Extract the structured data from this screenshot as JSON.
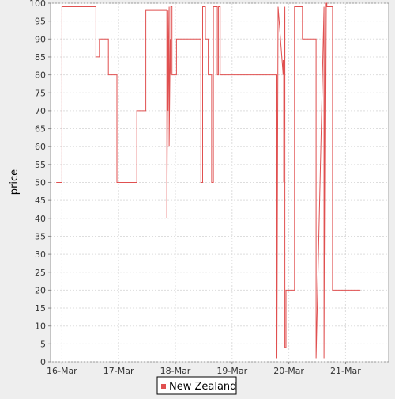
{
  "chart_data": {
    "type": "line",
    "xlabel": "",
    "ylabel": "price",
    "x_ticks": [
      "16-Mar",
      "17-Mar",
      "18-Mar",
      "19-Mar",
      "20-Mar",
      "21-Mar"
    ],
    "x_tick_days": [
      0,
      1,
      2,
      3,
      4,
      5
    ],
    "xlim_days": [
      -0.2,
      5.76
    ],
    "ylim": [
      0,
      100
    ],
    "y_ticks": [
      0,
      5,
      10,
      15,
      20,
      25,
      30,
      35,
      40,
      45,
      50,
      55,
      60,
      65,
      70,
      75,
      80,
      85,
      90,
      95,
      100
    ],
    "grid": true,
    "legend_position": "bottom",
    "series": [
      {
        "name": "New Zealand",
        "color": "#e05050",
        "x_days": [
          -0.1,
          0.0,
          0.0,
          0.02,
          0.02,
          0.6,
          0.6,
          0.66,
          0.66,
          0.82,
          0.82,
          0.97,
          0.97,
          1.32,
          1.32,
          1.48,
          1.48,
          1.85,
          1.85,
          1.87,
          1.87,
          1.89,
          1.89,
          1.91,
          1.91,
          1.92,
          1.92,
          1.94,
          1.94,
          1.96,
          1.96,
          1.98,
          1.98,
          2.02,
          2.02,
          2.45,
          2.45,
          2.48,
          2.48,
          2.53,
          2.53,
          2.58,
          2.58,
          2.64,
          2.64,
          2.67,
          2.67,
          2.74,
          2.74,
          2.76,
          2.76,
          2.79,
          2.79,
          2.91,
          2.91,
          2.93,
          2.93,
          3.79,
          3.79,
          3.81,
          3.81,
          3.9,
          3.9,
          3.91,
          3.91,
          3.93,
          3.93,
          3.95,
          3.95,
          4.1,
          4.1,
          4.24,
          4.24,
          4.48,
          4.48,
          4.62,
          4.62,
          4.64,
          4.64,
          4.66,
          4.66,
          4.67,
          4.67,
          4.7,
          4.7,
          4.72,
          4.72,
          4.77,
          4.77,
          5.26,
          5.26
        ],
        "values": [
          50,
          50,
          99,
          99,
          99,
          99,
          85,
          85,
          90,
          90,
          80,
          80,
          50,
          50,
          70,
          70,
          98,
          98,
          40,
          98,
          70,
          99,
          60,
          90,
          90,
          80,
          99,
          99,
          80,
          80,
          80,
          80,
          80,
          80,
          90,
          90,
          50,
          50,
          99,
          99,
          90,
          90,
          80,
          80,
          50,
          50,
          99,
          99,
          80,
          80,
          99,
          99,
          80,
          80,
          80,
          80,
          80,
          80,
          1,
          99,
          99,
          80,
          84,
          84,
          50,
          99,
          4,
          4,
          20,
          20,
          99,
          99,
          90,
          90,
          1,
          99,
          1,
          100,
          30,
          100,
          100,
          100,
          99,
          99,
          99,
          99,
          99,
          99,
          20,
          20,
          20
        ]
      }
    ]
  }
}
